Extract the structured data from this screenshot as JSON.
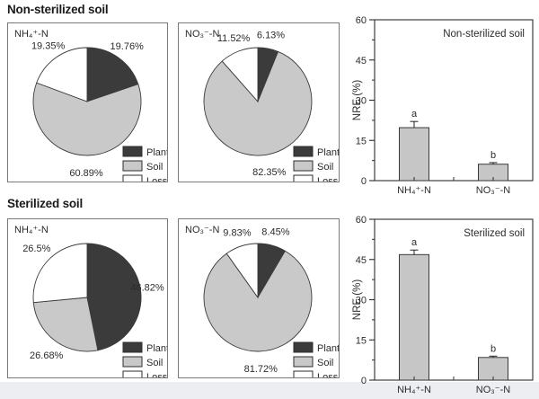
{
  "figure": {
    "sections": [
      {
        "title": "Non-sterilized soil"
      },
      {
        "title": "Sterilized soil"
      }
    ]
  },
  "colors": {
    "plant": "#3b3b3b",
    "soil": "#c9c9c9",
    "loss": "#ffffff",
    "bar_fill": "#c6c6c6",
    "outline": "#3a3a3a",
    "axis": "#2e2e2e",
    "panel_border": "#7a7a7a",
    "text": "#2b2b2b",
    "strip": "#eceef1"
  },
  "legend": {
    "entries": [
      "Plant",
      "Soil",
      "Loss"
    ]
  },
  "chart_data": [
    {
      "type": "pie",
      "section": "Non-sterilized soil",
      "panel_label": "NH₄⁺-N",
      "slices": [
        {
          "name": "Plant",
          "value": 19.76,
          "label": "19.76%"
        },
        {
          "name": "Soil",
          "value": 60.89,
          "label": "60.89%"
        },
        {
          "name": "Loss",
          "value": 19.35,
          "label": "19.35%"
        }
      ],
      "legend": [
        "Plant",
        "Soil",
        "Loss"
      ],
      "legend_position": "bottom-right"
    },
    {
      "type": "pie",
      "section": "Non-sterilized soil",
      "panel_label": "NO₃⁻-N",
      "slices": [
        {
          "name": "Plant",
          "value": 6.13,
          "label": "6.13%"
        },
        {
          "name": "Soil",
          "value": 82.35,
          "label": "82.35%"
        },
        {
          "name": "Loss",
          "value": 11.52,
          "label": "11.52%"
        }
      ],
      "legend": [
        "Plant",
        "Soil",
        "Loss"
      ],
      "legend_position": "bottom-right"
    },
    {
      "type": "bar",
      "title": "Non-sterilized soil",
      "ylabel": "NRE (%)",
      "ylim": [
        0,
        60
      ],
      "yticks": [
        0,
        15,
        30,
        45,
        60
      ],
      "categories": [
        "NH₄⁺-N",
        "NO₃⁻-N"
      ],
      "values": [
        19.76,
        6.13
      ],
      "errors": [
        2.3,
        0.6
      ],
      "sig_letters": [
        "a",
        "b"
      ],
      "grid": false,
      "legend_position": "none"
    },
    {
      "type": "pie",
      "section": "Sterilized soil",
      "panel_label": "NH₄⁺-N",
      "slices": [
        {
          "name": "Plant",
          "value": 46.82,
          "label": "46.82%"
        },
        {
          "name": "Soil",
          "value": 26.68,
          "label": "26.68%"
        },
        {
          "name": "Loss",
          "value": 26.5,
          "label": "26.5%"
        }
      ],
      "legend": [
        "Plant",
        "Soil",
        "Loss"
      ],
      "legend_position": "bottom-right"
    },
    {
      "type": "pie",
      "section": "Sterilized soil",
      "panel_label": "NO₃⁻-N",
      "slices": [
        {
          "name": "Plant",
          "value": 8.45,
          "label": "8.45%"
        },
        {
          "name": "Soil",
          "value": 81.72,
          "label": "81.72%"
        },
        {
          "name": "Loss",
          "value": 9.83,
          "label": "9.83%"
        }
      ],
      "legend": [
        "Plant",
        "Soil",
        "Loss"
      ],
      "legend_position": "bottom-right"
    },
    {
      "type": "bar",
      "title": "Sterilized soil",
      "ylabel": "NRE (%)",
      "ylim": [
        0,
        60
      ],
      "yticks": [
        0,
        15,
        30,
        45,
        60
      ],
      "categories": [
        "NH₄⁺-N",
        "NO₃⁻-N"
      ],
      "values": [
        46.82,
        8.45
      ],
      "errors": [
        1.7,
        0.5
      ],
      "sig_letters": [
        "a",
        "b"
      ],
      "grid": false,
      "legend_position": "none"
    }
  ]
}
